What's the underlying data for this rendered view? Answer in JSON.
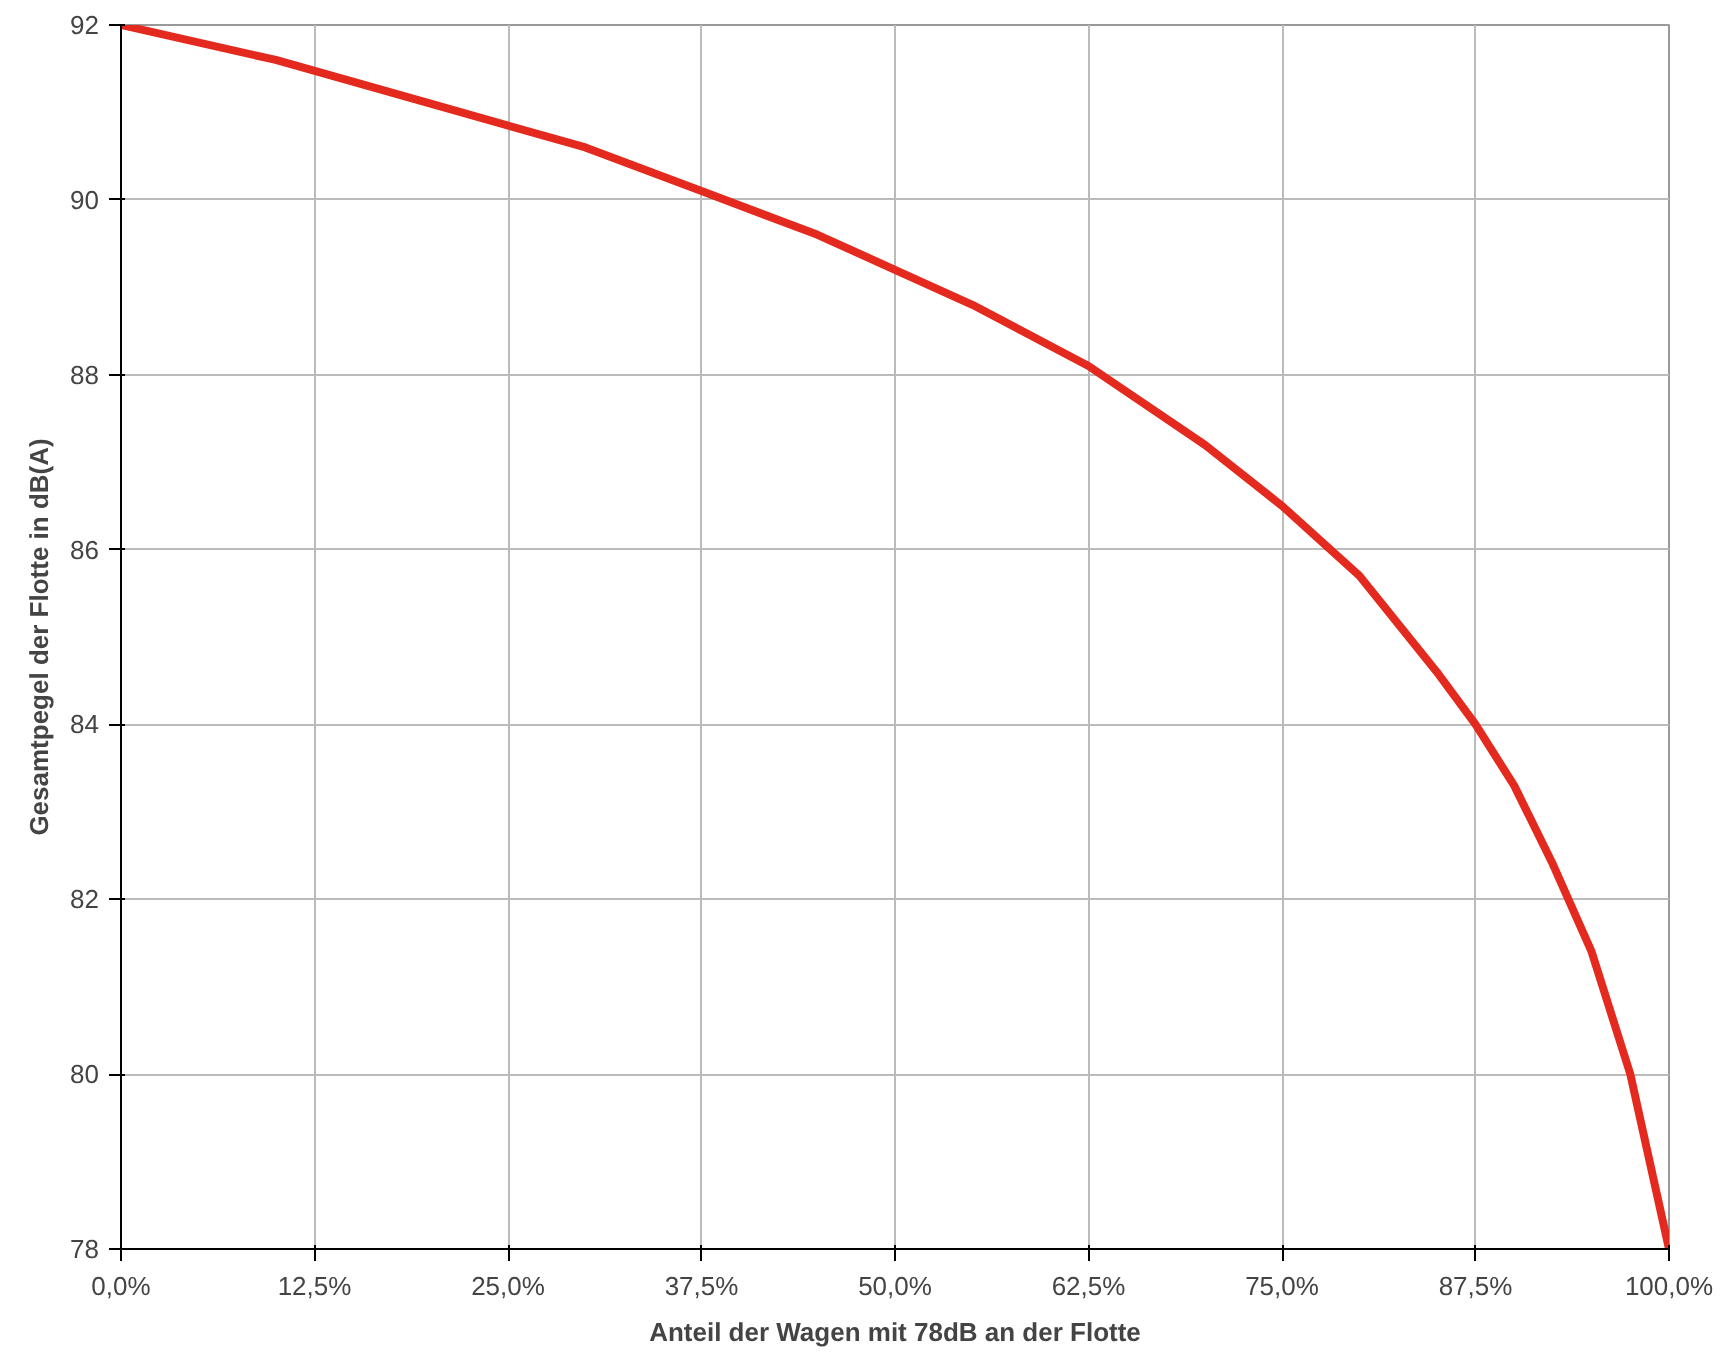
{
  "chart_data": {
    "type": "line",
    "xlabel": "Anteil der Wagen mit 78dB an der Flotte",
    "ylabel": "Gesamtpegel der Flotte in dB(A)",
    "x": [
      0,
      10,
      20,
      30,
      37.5,
      45,
      50,
      55,
      62.5,
      70,
      75,
      80,
      85,
      87.5,
      90,
      92.5,
      95,
      97.5,
      100
    ],
    "series": [
      {
        "color": "#e42a1f",
        "values": [
          92,
          91.6,
          91.1,
          90.6,
          90.1,
          89.6,
          89.2,
          88.8,
          88.1,
          87.2,
          86.5,
          85.7,
          84.6,
          84.0,
          83.3,
          82.4,
          81.4,
          80.0,
          78
        ]
      }
    ],
    "xlim": [
      0,
      100
    ],
    "ylim": [
      78,
      92
    ],
    "xticks": [
      {
        "value": 0,
        "label": "0,0%"
      },
      {
        "value": 12.5,
        "label": "12,5%"
      },
      {
        "value": 25,
        "label": "25,0%"
      },
      {
        "value": 37.5,
        "label": "37,5%"
      },
      {
        "value": 50,
        "label": "50,0%"
      },
      {
        "value": 62.5,
        "label": "62,5%"
      },
      {
        "value": 75,
        "label": "75,0%"
      },
      {
        "value": 87.5,
        "label": "87,5%"
      },
      {
        "value": 100,
        "label": "100,0%"
      }
    ],
    "yticks": [
      78,
      80,
      82,
      84,
      86,
      88,
      90,
      92
    ],
    "grid": true,
    "marker": "none",
    "line_style": "solid"
  }
}
